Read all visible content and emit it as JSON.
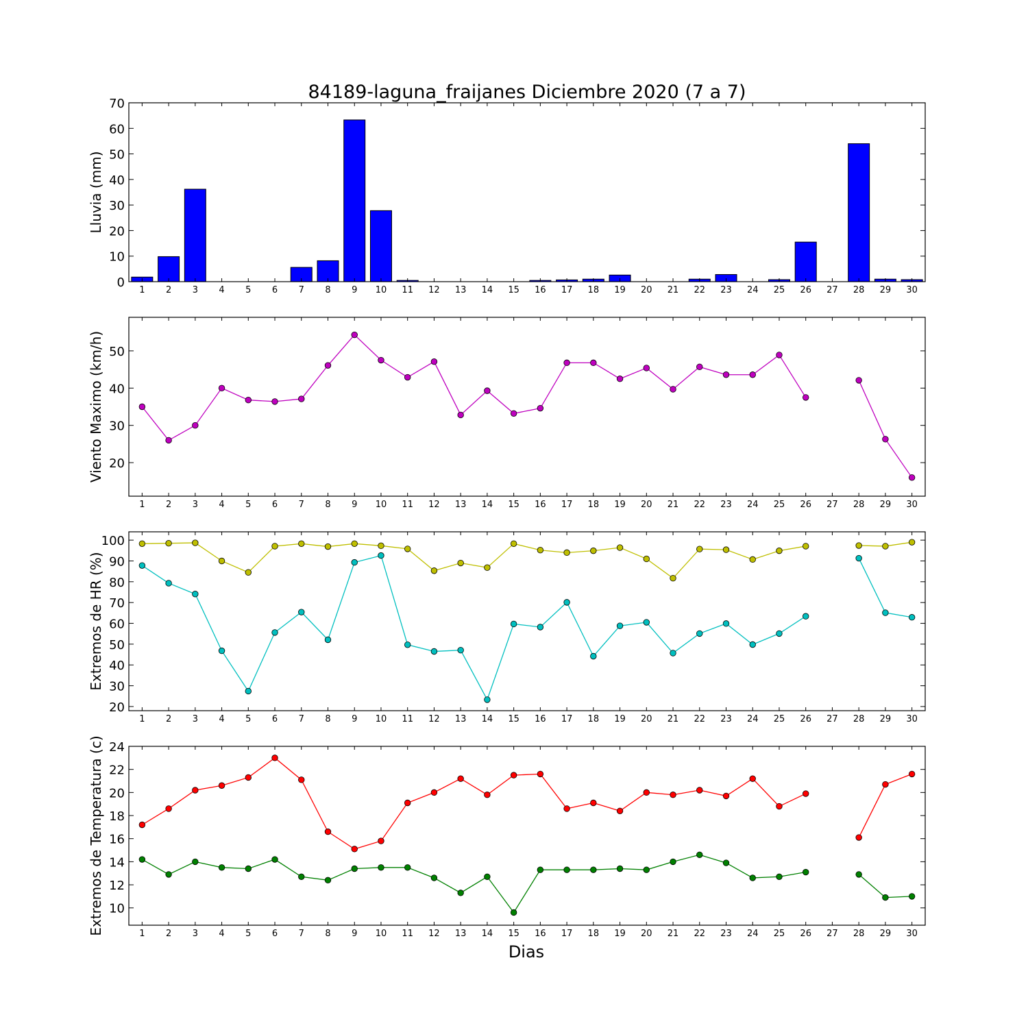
{
  "chart_data": [
    {
      "type": "bar",
      "title": "84189-laguna_fraijanes Diciembre 2020  (7 a 7)",
      "ylabel": "Lluvia (mm)",
      "xlabel": "",
      "ylim": [
        0,
        70
      ],
      "yticks": [
        0,
        10,
        20,
        30,
        40,
        50,
        60,
        70
      ],
      "categories": [
        "1",
        "2",
        "3",
        "4",
        "5",
        "6",
        "7",
        "8",
        "9",
        "10",
        "11",
        "12",
        "13",
        "14",
        "15",
        "16",
        "17",
        "18",
        "19",
        "20",
        "21",
        "22",
        "23",
        "24",
        "25",
        "26",
        "27",
        "28",
        "29",
        "30"
      ],
      "series": [
        {
          "color": "#0000ff",
          "values": [
            1.8,
            9.8,
            36.2,
            0,
            0,
            0,
            5.6,
            8.2,
            63.3,
            27.8,
            0.5,
            0,
            0,
            0,
            0,
            0.5,
            0.7,
            1,
            2.6,
            0,
            0,
            1,
            2.8,
            0,
            0.8,
            15.5,
            0,
            54,
            1,
            0.8
          ]
        }
      ]
    },
    {
      "type": "line",
      "ylabel": "Viento Maximo (km/h)",
      "ylim": [
        11,
        59
      ],
      "yticks": [
        20,
        30,
        40,
        50
      ],
      "x": [
        1,
        2,
        3,
        4,
        5,
        6,
        7,
        8,
        9,
        10,
        11,
        12,
        13,
        14,
        15,
        16,
        17,
        18,
        19,
        20,
        21,
        22,
        23,
        24,
        25,
        26,
        27,
        28,
        29,
        30
      ],
      "series": [
        {
          "color": "#bf00bf",
          "values": [
            35,
            26,
            30,
            40,
            36.8,
            36.4,
            37.1,
            46.1,
            54.3,
            47.5,
            42.9,
            47.1,
            32.8,
            39.3,
            33.2,
            34.6,
            46.8,
            46.8,
            42.5,
            45.4,
            39.7,
            45.7,
            43.6,
            43.6,
            48.9,
            37.5,
            null,
            42.1,
            26.3,
            16
          ]
        }
      ]
    },
    {
      "type": "line",
      "ylabel": "Extremos de HR (%)",
      "ylim": [
        18,
        104
      ],
      "yticks": [
        20,
        30,
        40,
        50,
        60,
        70,
        80,
        90,
        100
      ],
      "x": [
        1,
        2,
        3,
        4,
        5,
        6,
        7,
        8,
        9,
        10,
        11,
        12,
        13,
        14,
        15,
        16,
        17,
        18,
        19,
        20,
        21,
        22,
        23,
        24,
        25,
        26,
        27,
        28,
        29,
        30
      ],
      "series": [
        {
          "color": "#bfbf00",
          "values": [
            98.3,
            98.5,
            98.7,
            90,
            84.5,
            97.1,
            98.3,
            96.9,
            98.3,
            97.3,
            95.8,
            85.3,
            89,
            86.8,
            98.3,
            95.2,
            94,
            94.9,
            96.4,
            91,
            81.7,
            95.7,
            95.4,
            90.7,
            94.9,
            97.1,
            null,
            97.4,
            97.1,
            99
          ]
        },
        {
          "color": "#00bfbf",
          "values": [
            87.8,
            79.3,
            74.1,
            46.8,
            27.4,
            55.6,
            65.4,
            52.1,
            89.3,
            92.6,
            49.7,
            46.5,
            47.1,
            23.3,
            59.7,
            58.2,
            70.1,
            44.2,
            58.8,
            60.5,
            45.7,
            55.1,
            59.9,
            49.8,
            55.1,
            63.4,
            null,
            91.3,
            65.1,
            62.9
          ]
        }
      ]
    },
    {
      "type": "line",
      "ylabel": "Extremos de Temperatura (c)",
      "xlabel": "Dias",
      "ylim": [
        8.5,
        24
      ],
      "yticks": [
        10,
        12,
        14,
        16,
        18,
        20,
        22,
        24
      ],
      "x": [
        1,
        2,
        3,
        4,
        5,
        6,
        7,
        8,
        9,
        10,
        11,
        12,
        13,
        14,
        15,
        16,
        17,
        18,
        19,
        20,
        21,
        22,
        23,
        24,
        25,
        26,
        27,
        28,
        29,
        30
      ],
      "series": [
        {
          "color": "#ff0000",
          "values": [
            17.2,
            18.6,
            20.2,
            20.6,
            21.3,
            23,
            21.1,
            16.6,
            15.1,
            15.8,
            19.1,
            20,
            21.2,
            19.8,
            21.5,
            21.6,
            18.6,
            19.1,
            18.4,
            20,
            19.8,
            20.2,
            19.7,
            21.2,
            18.8,
            19.9,
            null,
            16.1,
            20.7,
            21.6
          ]
        },
        {
          "color": "#008000",
          "values": [
            14.2,
            12.9,
            14,
            13.5,
            13.4,
            14.2,
            12.7,
            12.4,
            13.4,
            13.5,
            13.5,
            12.6,
            11.3,
            12.7,
            9.6,
            13.3,
            13.3,
            13.3,
            13.4,
            13.3,
            14,
            14.6,
            13.9,
            12.6,
            12.7,
            13.1,
            null,
            12.9,
            10.9,
            11
          ]
        }
      ]
    }
  ]
}
